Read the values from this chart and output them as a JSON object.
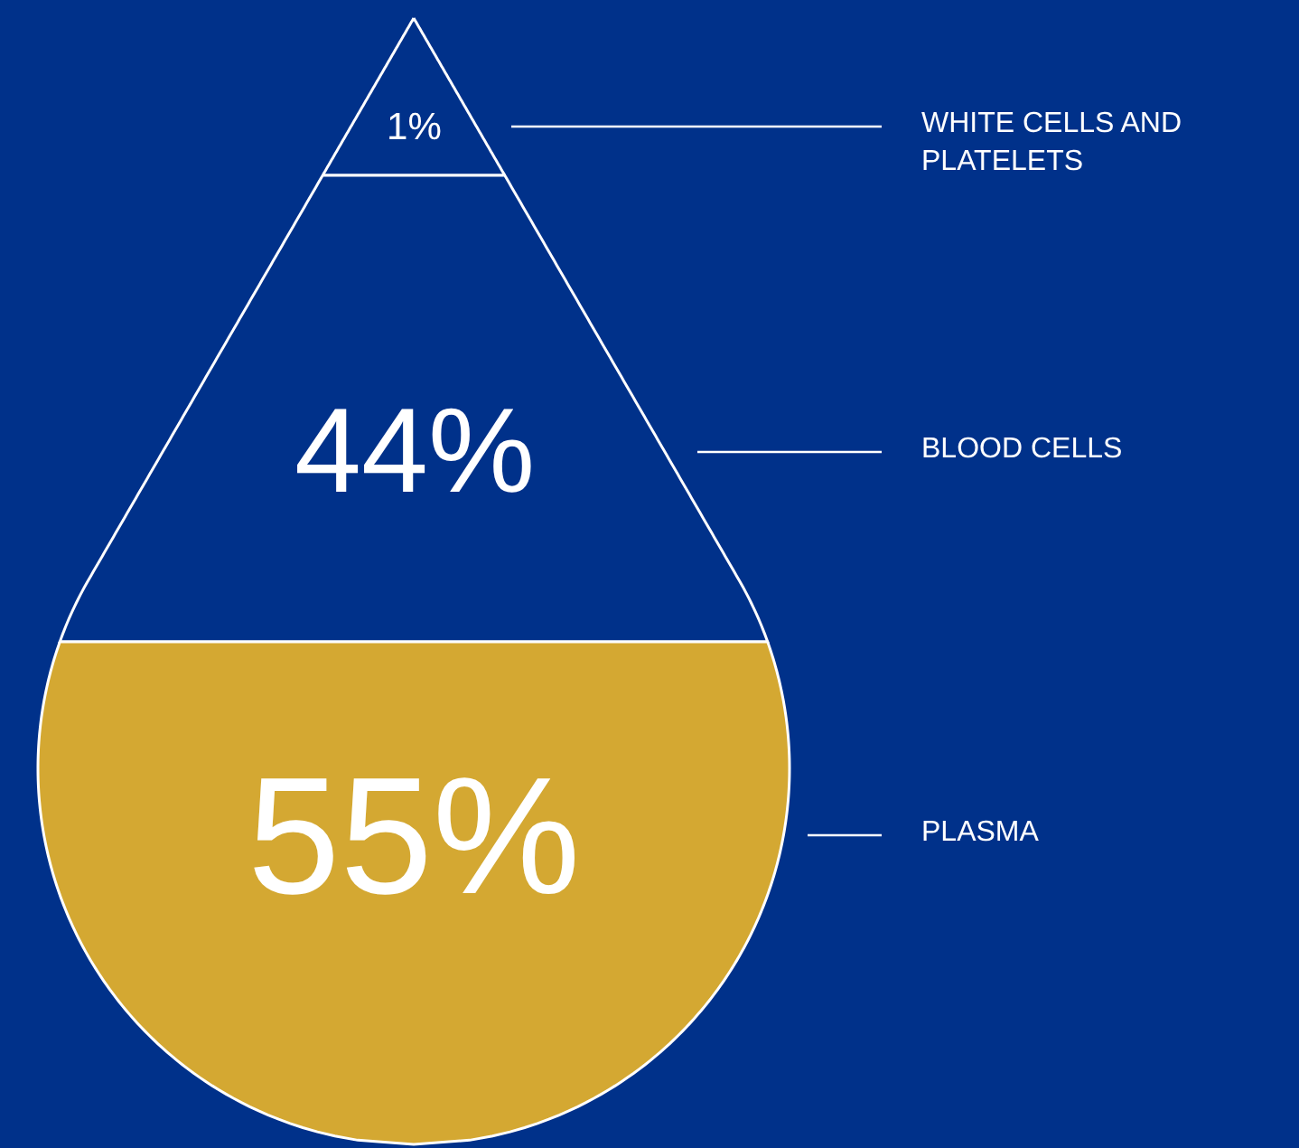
{
  "chart_data": {
    "type": "other",
    "categories": [
      "WHITE CELLS AND PLATELETS",
      "BLOOD CELLS",
      "PLASMA"
    ],
    "values": [
      1,
      44,
      55
    ],
    "value_labels": [
      "1%",
      "44%",
      "55%"
    ],
    "colors": [
      "#00318a",
      "#00318a",
      "#d4a832"
    ]
  }
}
